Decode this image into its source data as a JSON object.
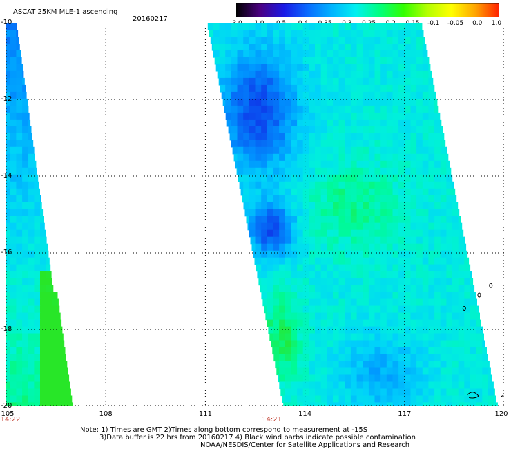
{
  "title": "ASCAT 25KM MLE-1 ascending",
  "date": "20160217",
  "colorbar": {
    "labels": [
      "-3.0",
      "-1.0",
      "-0.5",
      "-0.4",
      "-0.35",
      "-0.3",
      "-0.25",
      "-0.2",
      "-0.15",
      "-0.1",
      "-0.05",
      "0.0",
      "1.0"
    ],
    "stops": [
      "#000000",
      "#4b0082",
      "#1a1ae6",
      "#0a6cff",
      "#00b4ff",
      "#00f0f0",
      "#00ff7f",
      "#32ff00",
      "#b4ff00",
      "#ffff00",
      "#ffa500",
      "#ff2000"
    ]
  },
  "axes": {
    "x_ticks": [
      "105",
      "108",
      "111",
      "114",
      "117",
      "120"
    ],
    "y_ticks": [
      "-10",
      "-12",
      "-14",
      "-16",
      "-18",
      "-20"
    ],
    "xlim": [
      105,
      120
    ],
    "ylim": [
      -20,
      -10
    ]
  },
  "time_labels": [
    {
      "lon": 105,
      "text": "14:22"
    },
    {
      "lon": 113,
      "text": "14:21"
    }
  ],
  "notes": [
    "Note: 1) Times are GMT 2)Times along bottom correspond to measurement at -15S",
    "3)Data buffer is 22 hrs from 20160217 4) Black wind barbs indicate possible contamination",
    "NOAA/NESDIS/Center for Satellite Applications and Research"
  ],
  "colors": {
    "timestamp": "#c0392b",
    "grid": "#000000"
  }
}
